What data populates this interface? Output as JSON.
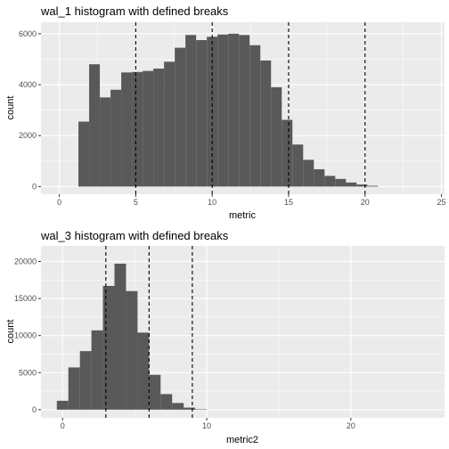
{
  "chart_data": [
    {
      "type": "bar",
      "title": "wal_1 histogram with defined breaks",
      "xlabel": "metric",
      "ylabel": "count",
      "xlim": [
        -1.2,
        25.2
      ],
      "ylim": [
        -300,
        6450
      ],
      "x_ticks": [
        0,
        5,
        10,
        15,
        20,
        25
      ],
      "y_ticks": [
        0,
        2000,
        4000,
        6000
      ],
      "x_tick_labels": [
        "0",
        "5",
        "10",
        "15",
        "20",
        "25"
      ],
      "y_tick_labels": [
        "0",
        "2000",
        "4000",
        "6000"
      ],
      "grid": true,
      "bin_width": 0.7,
      "bin_centers": [
        1.6,
        2.3,
        3.0,
        3.7,
        4.4,
        5.1,
        5.8,
        6.5,
        7.2,
        7.9,
        8.6,
        9.3,
        10.0,
        10.7,
        11.4,
        12.1,
        12.8,
        13.5,
        14.2,
        14.9,
        15.6,
        16.3,
        17.0,
        17.7,
        18.4,
        19.1,
        19.8,
        20.5
      ],
      "counts": [
        2550,
        4800,
        3500,
        3800,
        4480,
        4500,
        4540,
        4630,
        4900,
        5450,
        5950,
        5750,
        5880,
        5970,
        6000,
        5950,
        5550,
        4950,
        3900,
        2620,
        1650,
        1050,
        680,
        420,
        300,
        160,
        80,
        30
      ],
      "vlines": [
        5,
        10,
        15,
        20
      ]
    },
    {
      "type": "bar",
      "title": "wal_3 histogram with defined breaks",
      "xlabel": "metric2",
      "ylabel": "count",
      "xlim": [
        -1.5,
        26.5
      ],
      "ylim": [
        -1100,
        22100
      ],
      "x_ticks": [
        0,
        10,
        20
      ],
      "y_ticks": [
        0,
        5000,
        10000,
        15000,
        20000
      ],
      "x_tick_labels": [
        "0",
        "10",
        "20"
      ],
      "y_tick_labels": [
        "0",
        "5000",
        "10000",
        "15000",
        "20000"
      ],
      "grid": true,
      "bin_width": 0.8,
      "bin_centers": [
        0.0,
        0.8,
        1.6,
        2.4,
        3.2,
        4.0,
        4.8,
        5.6,
        6.4,
        7.2,
        8.0,
        8.8,
        9.6
      ],
      "counts": [
        1200,
        5700,
        7900,
        10700,
        16700,
        19700,
        16000,
        10400,
        4700,
        2100,
        900,
        280,
        60
      ],
      "vlines": [
        3,
        6,
        9
      ]
    }
  ],
  "colors": {
    "panel_bg": "#ebebeb",
    "grid_major": "#ffffff",
    "bar_fill": "#595959",
    "vline": "#000000",
    "tick_text": "#4d4d4d"
  }
}
